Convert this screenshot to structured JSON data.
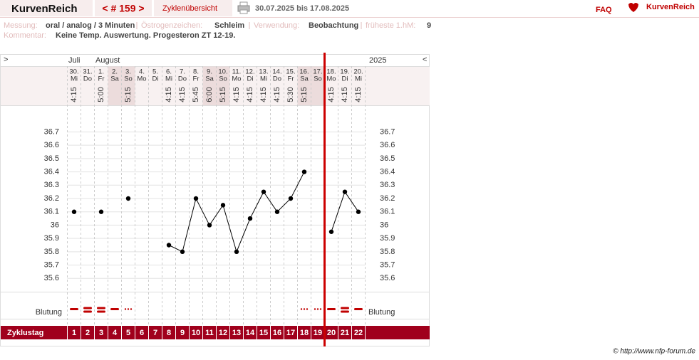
{
  "header": {
    "title": "KurvenReich",
    "cycle_nav": "< # 159 >",
    "overview": "Zyklenübersicht",
    "period": "30.07.2025 bis 17.08.2025",
    "faq": "FAQ",
    "logo": "KurvenReich"
  },
  "info": {
    "fields": [
      {
        "label": "Messung:",
        "value": "oral / analog / 3 Minuten"
      },
      {
        "label": "Östrogenzeichen:",
        "value": "Schleim"
      },
      {
        "label": "Verwendung:",
        "value": "Beobachtung"
      },
      {
        "label": "früheste 1.hM:",
        "value": "9"
      }
    ],
    "comment": {
      "label": "Kommentar:",
      "value": "Keine Temp. Auswertung. Progesteron ZT 12-19."
    }
  },
  "chart_data": {
    "type": "line",
    "nav_prev": ">",
    "nav_next": "<",
    "year": "2025",
    "months": [
      "Juli",
      "August"
    ],
    "dates": [
      "30.",
      "31.",
      "1.",
      "2.",
      "3.",
      "4.",
      "5.",
      "6.",
      "7.",
      "8.",
      "9.",
      "10.",
      "11.",
      "12.",
      "13.",
      "14.",
      "15.",
      "16.",
      "17.",
      "18.",
      "19.",
      "20."
    ],
    "weekdays": [
      "Mi",
      "Do",
      "Fr",
      "Sa",
      "So",
      "Mo",
      "Di",
      "Mi",
      "Do",
      "Fr",
      "Sa",
      "So",
      "Mo",
      "Di",
      "Mi",
      "Do",
      "Fr",
      "Sa",
      "So",
      "Mo",
      "Di",
      "Mi"
    ],
    "times": [
      "4:15",
      null,
      "5:00",
      null,
      "5:15",
      null,
      null,
      "4:15",
      "4:15",
      "5:45",
      "6:00",
      "5:15",
      "4:15",
      "4:15",
      "4:15",
      "4:15",
      "5:30",
      "5:15",
      null,
      "4:15",
      "4:15",
      "4:15"
    ],
    "values": [
      36.1,
      null,
      36.1,
      null,
      36.2,
      null,
      null,
      35.85,
      35.8,
      36.2,
      36.0,
      36.15,
      35.8,
      36.05,
      36.25,
      36.1,
      36.2,
      36.4,
      null,
      35.95,
      36.25,
      36.1
    ],
    "color": "#000000",
    "ylim": [
      35.5,
      36.9
    ],
    "yticks": [
      35.6,
      35.7,
      35.8,
      35.9,
      36,
      36.1,
      36.2,
      36.3,
      36.4,
      36.5,
      36.6,
      36.7
    ],
    "grid": true,
    "bleeding_label": "Blutung",
    "bleeding": [
      2,
      3,
      3,
      2,
      1,
      null,
      null,
      null,
      null,
      null,
      null,
      null,
      null,
      null,
      null,
      null,
      null,
      1,
      1,
      2,
      3,
      2
    ],
    "bleeding_color": "#c00000",
    "cycle_day_label": "Zyklustag",
    "cycle_days": [
      1,
      2,
      3,
      4,
      5,
      6,
      7,
      8,
      9,
      10,
      11,
      12,
      13,
      14,
      15,
      16,
      17,
      18,
      19,
      20,
      21,
      22
    ],
    "end_line": 19.5,
    "end_line_color": "#cc0000"
  },
  "footer": "© http://www.nfp-forum.de"
}
